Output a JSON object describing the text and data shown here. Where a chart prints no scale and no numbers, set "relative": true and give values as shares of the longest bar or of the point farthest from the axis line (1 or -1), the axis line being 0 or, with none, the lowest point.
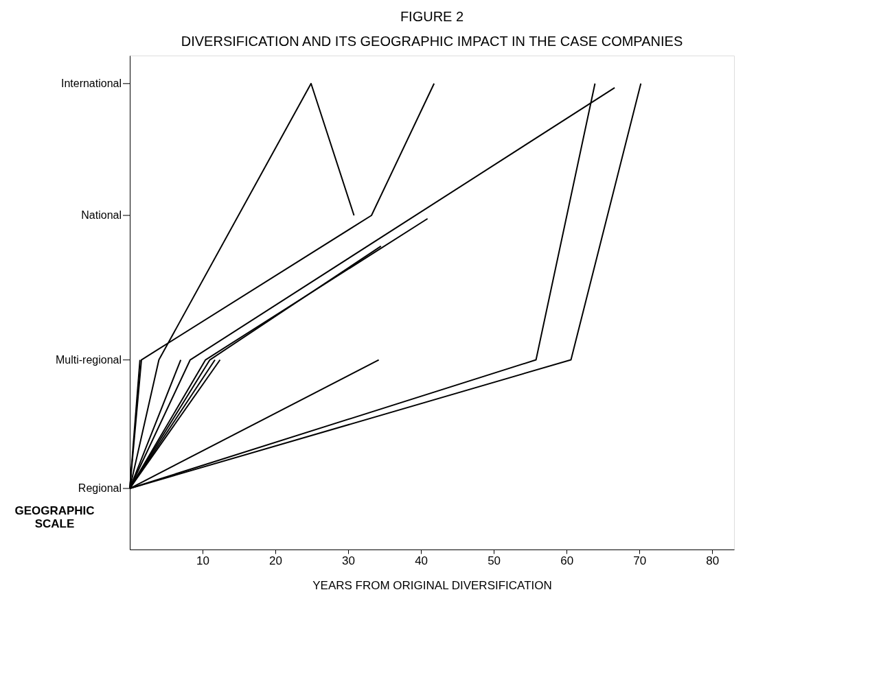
{
  "chart_data": {
    "type": "line",
    "title": "FIGURE 2",
    "subtitle": "DIVERSIFICATION AND ITS GEOGRAPHIC IMPACT IN THE CASE COMPANIES",
    "xlabel": "YEARS FROM ORIGINAL DIVERSIFICATION",
    "ylabel": "GEOGRAPHIC SCALE",
    "xlim": [
      0,
      83
    ],
    "xticks": [
      10,
      20,
      30,
      40,
      50,
      60,
      70,
      80
    ],
    "relative": true,
    "annotations": [
      "Regional",
      "Multi-regional",
      "National",
      "International"
    ],
    "grid": false,
    "legend": false,
    "marker": "none",
    "line_style": "solid",
    "series": [
      {
        "color": "#000000",
        "x": [
          0,
          1.4
        ],
        "values": [
          0.131,
          0.407
        ]
      },
      {
        "color": "#000000",
        "x": [
          0,
          1.6,
          33.2,
          41.8
        ],
        "values": [
          0.131,
          0.407,
          0.717,
          1.0
        ]
      },
      {
        "color": "#000000",
        "x": [
          0,
          4.0,
          24.9,
          30.8
        ],
        "values": [
          0.131,
          0.407,
          1.0,
          0.717
        ]
      },
      {
        "color": "#000000",
        "x": [
          0,
          7.0
        ],
        "values": [
          0.131,
          0.407
        ]
      },
      {
        "color": "#000000",
        "x": [
          0,
          8.3,
          66.6
        ],
        "values": [
          0.131,
          0.407,
          0.991
        ]
      },
      {
        "color": "#000000",
        "x": [
          0,
          10.4,
          40.9
        ],
        "values": [
          0.131,
          0.407,
          0.71
        ]
      },
      {
        "color": "#000000",
        "x": [
          0,
          11.0,
          34.5
        ],
        "values": [
          0.131,
          0.407,
          0.651
        ]
      },
      {
        "color": "#000000",
        "x": [
          0,
          11.7
        ],
        "values": [
          0.131,
          0.407
        ]
      },
      {
        "color": "#000000",
        "x": [
          0,
          12.4
        ],
        "values": [
          0.131,
          0.407
        ]
      },
      {
        "color": "#000000",
        "x": [
          0,
          34.2
        ],
        "values": [
          0.131,
          0.407
        ]
      },
      {
        "color": "#000000",
        "x": [
          0,
          55.8,
          63.9
        ],
        "values": [
          0.131,
          0.407,
          1.0
        ]
      },
      {
        "color": "#000000",
        "x": [
          0,
          60.6,
          70.2
        ],
        "values": [
          0.131,
          0.407,
          1.0
        ]
      }
    ]
  }
}
